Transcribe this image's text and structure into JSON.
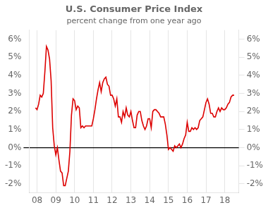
{
  "chart_data": {
    "type": "line",
    "title": "U.S. Consumer Price Index",
    "subtitle": "percent change from one year ago",
    "x": [
      2007.917,
      2008.0,
      2008.083,
      2008.167,
      2008.25,
      2008.333,
      2008.417,
      2008.5,
      2008.583,
      2008.667,
      2008.75,
      2008.833,
      2008.917,
      2009.0,
      2009.083,
      2009.167,
      2009.25,
      2009.333,
      2009.417,
      2009.5,
      2009.583,
      2009.667,
      2009.75,
      2009.833,
      2009.917,
      2010.0,
      2010.083,
      2010.167,
      2010.25,
      2010.333,
      2010.417,
      2010.5,
      2010.583,
      2010.667,
      2010.75,
      2010.833,
      2010.917,
      2011.0,
      2011.083,
      2011.167,
      2011.25,
      2011.333,
      2011.417,
      2011.5,
      2011.583,
      2011.667,
      2011.75,
      2011.833,
      2011.917,
      2012.0,
      2012.083,
      2012.167,
      2012.25,
      2012.333,
      2012.417,
      2012.5,
      2012.583,
      2012.667,
      2012.75,
      2012.833,
      2012.917,
      2013.0,
      2013.083,
      2013.167,
      2013.25,
      2013.333,
      2013.417,
      2013.5,
      2013.583,
      2013.667,
      2013.75,
      2013.833,
      2013.917,
      2014.0,
      2014.083,
      2014.167,
      2014.25,
      2014.333,
      2014.417,
      2014.5,
      2014.583,
      2014.667,
      2014.75,
      2014.833,
      2014.917,
      2015.0,
      2015.083,
      2015.167,
      2015.25,
      2015.333,
      2015.417,
      2015.5,
      2015.583,
      2015.667,
      2015.75,
      2015.833,
      2015.917,
      2016.0,
      2016.083,
      2016.167,
      2016.25,
      2016.333,
      2016.417,
      2016.5,
      2016.583,
      2016.667,
      2016.75,
      2016.833,
      2016.917,
      2017.0,
      2017.083,
      2017.167,
      2017.25,
      2017.333,
      2017.417,
      2017.5,
      2017.583,
      2017.667,
      2017.75,
      2017.833,
      2017.917,
      2018.0,
      2018.083,
      2018.167,
      2018.25,
      2018.333,
      2018.417,
      2018.5
    ],
    "series": [
      {
        "name": "U.S. Consumer Price Index",
        "color": "#dd0000",
        "values": [
          2.2,
          2.1,
          2.4,
          2.9,
          2.8,
          3.0,
          4.2,
          5.6,
          5.4,
          4.9,
          3.7,
          1.1,
          0.1,
          -0.4,
          0.0,
          -0.7,
          -1.3,
          -1.4,
          -2.1,
          -2.1,
          -1.7,
          -1.3,
          -0.2,
          1.8,
          2.7,
          2.6,
          2.1,
          2.3,
          2.2,
          1.1,
          1.2,
          1.1,
          1.2,
          1.2,
          1.2,
          1.2,
          1.2,
          1.6,
          2.1,
          2.7,
          3.2,
          3.6,
          3.1,
          3.6,
          3.8,
          3.9,
          3.5,
          3.4,
          2.9,
          2.9,
          2.7,
          2.3,
          2.7,
          1.7,
          1.7,
          1.4,
          2.0,
          1.7,
          2.2,
          1.8,
          1.7,
          2.0,
          1.5,
          1.1,
          1.1,
          1.8,
          2.0,
          2.0,
          1.5,
          1.2,
          1.0,
          1.2,
          1.6,
          1.6,
          1.1,
          2.0,
          2.1,
          2.1,
          2.0,
          1.9,
          1.7,
          1.7,
          1.7,
          1.3,
          0.7,
          -0.1,
          0.0,
          -0.1,
          -0.2,
          0.1,
          0.0,
          0.1,
          0.2,
          0.0,
          0.2,
          0.5,
          0.7,
          1.4,
          0.9,
          0.9,
          1.1,
          1.0,
          1.1,
          1.0,
          1.1,
          1.5,
          1.6,
          1.7,
          2.1,
          2.5,
          2.7,
          2.4,
          1.9,
          1.9,
          1.7,
          1.7,
          2.0,
          2.2,
          2.0,
          2.2,
          2.1,
          2.1,
          2.2,
          2.4,
          2.5,
          2.8,
          2.9,
          2.9
        ]
      }
    ],
    "xlim": [
      2007.58,
      2018.75
    ],
    "xticks": [
      {
        "value": 2008,
        "label": "08"
      },
      {
        "value": 2009,
        "label": "09"
      },
      {
        "value": 2010,
        "label": "10"
      },
      {
        "value": 2011,
        "label": "11"
      },
      {
        "value": 2012,
        "label": "12"
      },
      {
        "value": 2013,
        "label": "13"
      },
      {
        "value": 2014,
        "label": "14"
      },
      {
        "value": 2015,
        "label": "15"
      },
      {
        "value": 2016,
        "label": "16"
      },
      {
        "value": 2017,
        "label": "17"
      },
      {
        "value": 2018,
        "label": "18"
      }
    ],
    "ylim": [
      -2.5,
      6.5
    ],
    "yticks": [
      {
        "value": -2,
        "label": "-2%"
      },
      {
        "value": -1,
        "label": "-1%"
      },
      {
        "value": 0,
        "label": "0%"
      },
      {
        "value": 1,
        "label": "1%"
      },
      {
        "value": 2,
        "label": "2%"
      },
      {
        "value": 3,
        "label": "3%"
      },
      {
        "value": 4,
        "label": "4%"
      },
      {
        "value": 5,
        "label": "5%"
      },
      {
        "value": 6,
        "label": "6%"
      }
    ],
    "y2lim": [
      -2.5,
      6.5
    ],
    "y2ticks": [
      {
        "value": -2,
        "label": "-2%"
      },
      {
        "value": -1,
        "label": "-1%"
      },
      {
        "value": 0,
        "label": "0%"
      },
      {
        "value": 1,
        "label": "1%"
      },
      {
        "value": 2,
        "label": "2%"
      },
      {
        "value": 3,
        "label": "3%"
      },
      {
        "value": 4,
        "label": "4%"
      },
      {
        "value": 5,
        "label": "5%"
      },
      {
        "value": 6,
        "label": "6%"
      }
    ],
    "grid": "x"
  }
}
